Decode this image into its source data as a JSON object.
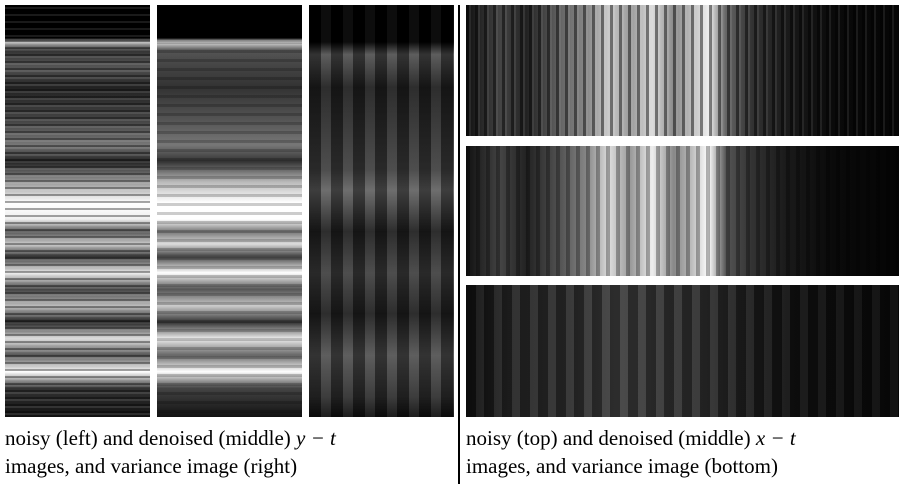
{
  "left_caption": {
    "line1": "noisy (left) and denoised (middle)",
    "math": "y − t",
    "line2": "images, and variance image (right)"
  },
  "right_caption": {
    "line1": "noisy (top) and denoised (middle)",
    "math": "x − t",
    "line2": "images, and variance image (bottom)"
  }
}
